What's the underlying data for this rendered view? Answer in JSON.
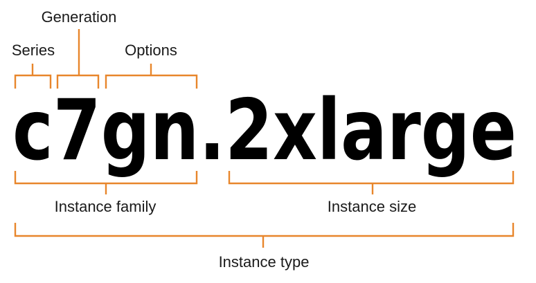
{
  "instance_type_string": "c7gn.2xlarge",
  "labels": {
    "series": "Series",
    "generation": "Generation",
    "options": "Options",
    "instance_family": "Instance family",
    "instance_size": "Instance size",
    "instance_type": "Instance type"
  },
  "colors": {
    "bracket": "#e8862b",
    "text": "#000000"
  }
}
